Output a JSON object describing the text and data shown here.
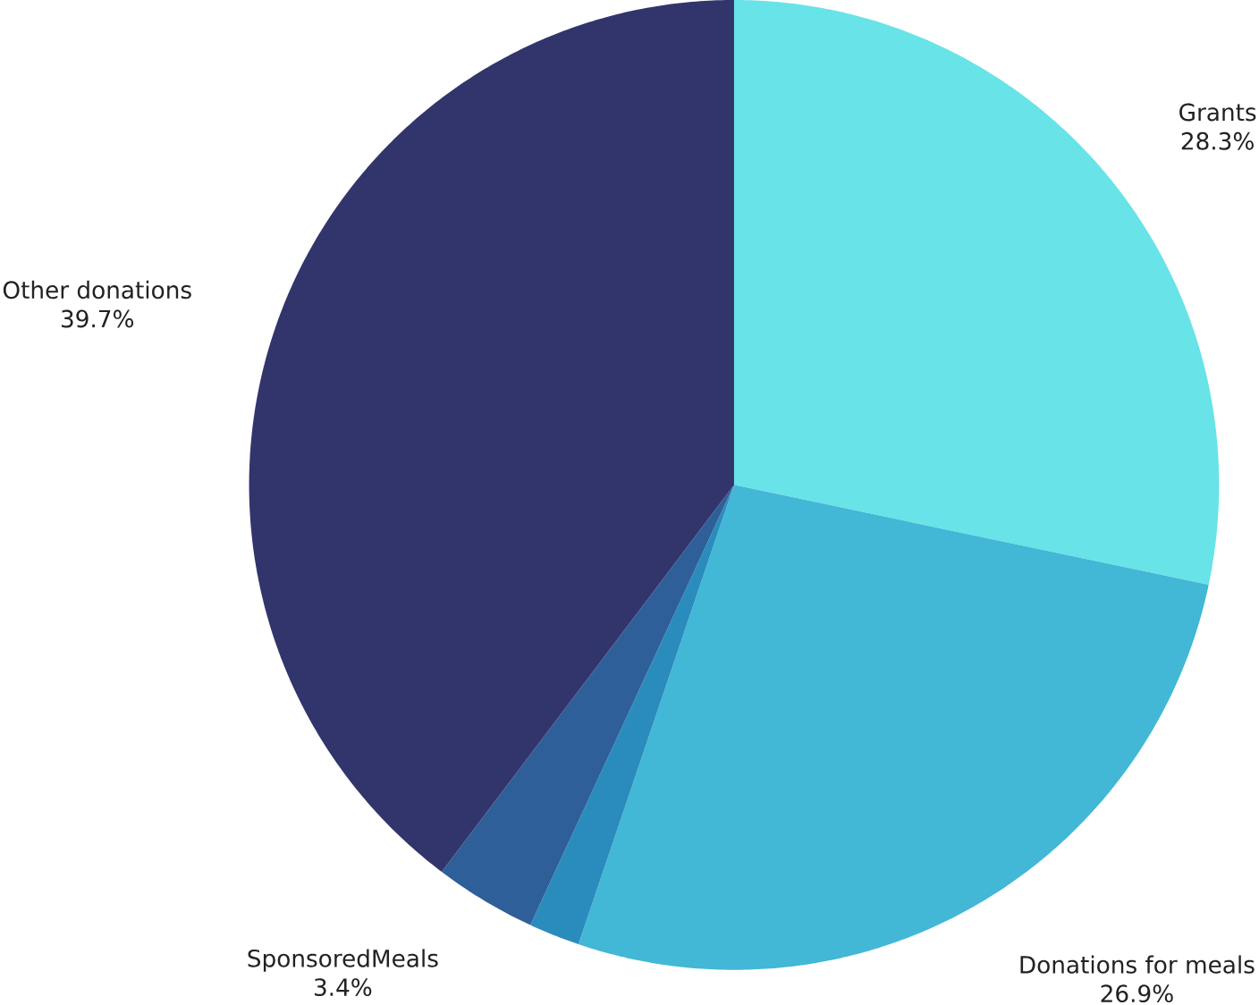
{
  "chart_data": {
    "type": "pie",
    "categories": [
      "Grants",
      "Donations for meals",
      null,
      "SponsoredMeals",
      "Other donations"
    ],
    "values": [
      28.3,
      26.9,
      1.7,
      3.4,
      39.7
    ],
    "value_labels": [
      "28.3%",
      "26.9%",
      null,
      "3.4%",
      "39.7%"
    ],
    "colors": [
      "#68e3e8",
      "#42b7d6",
      "#2a8cbd",
      "#2f5f98",
      "#32356b"
    ]
  }
}
